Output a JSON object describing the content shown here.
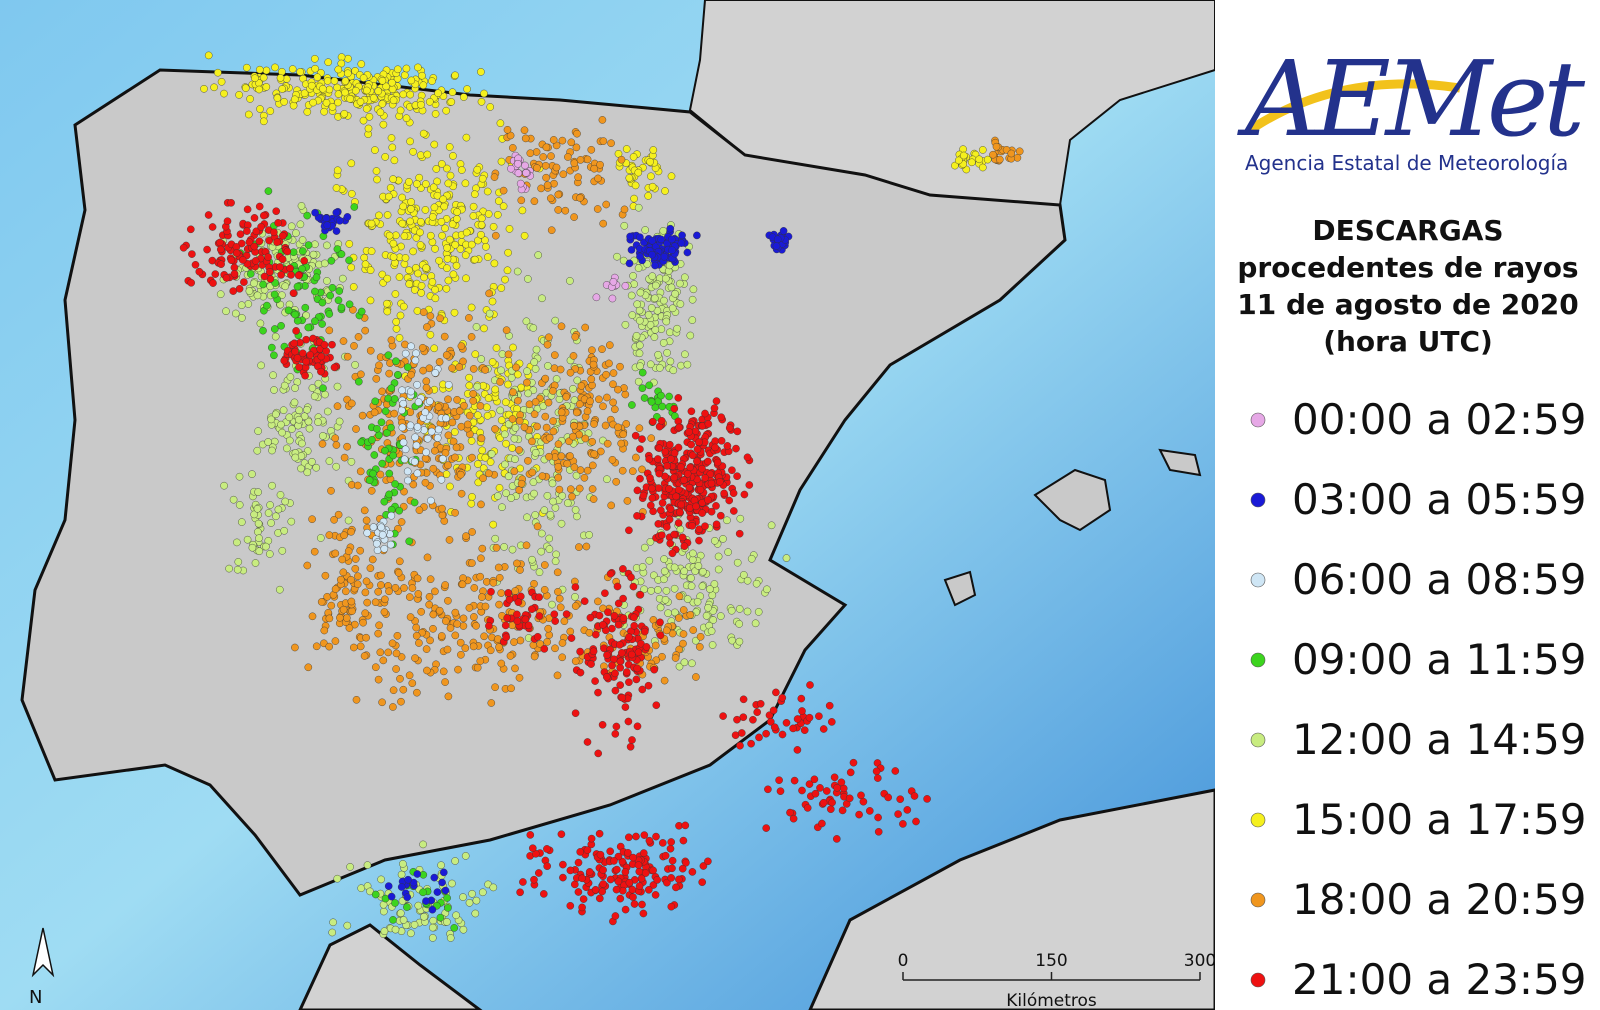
{
  "header": {
    "logo": "AEMet",
    "agency": "Agencia Estatal de Meteorología"
  },
  "title": [
    "DESCARGAS",
    "procedentes de rayos",
    "11 de agosto de 2020",
    "(hora UTC)"
  ],
  "legend": [
    {
      "label": "00:00 a 02:59",
      "color": "#e6a8e6"
    },
    {
      "label": "03:00 a 05:59",
      "color": "#1a1ad6"
    },
    {
      "label": "06:00 a 08:59",
      "color": "#cfe6f5"
    },
    {
      "label": "09:00 a 11:59",
      "color": "#3cd41e"
    },
    {
      "label": "12:00 a 14:59",
      "color": "#c8ec80"
    },
    {
      "label": "15:00 a 17:59",
      "color": "#f5f01e"
    },
    {
      "label": "18:00 a 20:59",
      "color": "#f0961e"
    },
    {
      "label": "21:00 a 23:59",
      "color": "#ee1111"
    }
  ],
  "scale": {
    "ticks": [
      0,
      150,
      300
    ],
    "unit": "Kilómetros"
  },
  "north": "N"
}
